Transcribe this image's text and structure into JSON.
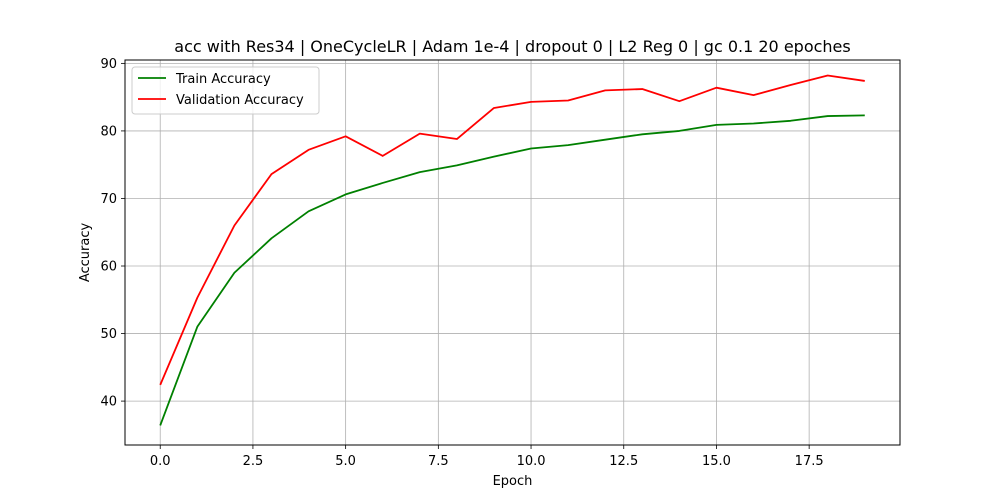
{
  "chart_data": {
    "type": "line",
    "title": "acc with Res34 | OneCycleLR | Adam 1e-4 | dropout 0 | L2 Reg 0 | gc 0.1 20 epoches",
    "xlabel": "Epoch",
    "ylabel": "Accuracy",
    "xlim": [
      -0.95,
      19.95
    ],
    "ylim": [
      33.5,
      90.5
    ],
    "xticks": [
      0,
      2.5,
      5,
      7.5,
      10,
      12.5,
      15,
      17.5
    ],
    "xtick_labels": [
      "0.0",
      "2.5",
      "5.0",
      "7.5",
      "10.0",
      "12.5",
      "15.0",
      "17.5"
    ],
    "yticks": [
      40,
      50,
      60,
      70,
      80,
      90
    ],
    "ytick_labels": [
      "40",
      "50",
      "60",
      "70",
      "80",
      "90"
    ],
    "grid": true,
    "legend": "top-left",
    "x": [
      0,
      1,
      2,
      3,
      4,
      5,
      6,
      7,
      8,
      9,
      10,
      11,
      12,
      13,
      14,
      15,
      16,
      17,
      18,
      19
    ],
    "series": [
      {
        "name": "Train Accuracy",
        "color": "#008000",
        "values": [
          36.4,
          51.0,
          59.0,
          64.1,
          68.1,
          70.6,
          72.3,
          73.9,
          74.9,
          76.2,
          77.4,
          77.9,
          78.7,
          79.5,
          80.0,
          80.9,
          81.1,
          81.5,
          82.2,
          82.3
        ]
      },
      {
        "name": "Validation Accuracy",
        "color": "#ff0000",
        "values": [
          42.4,
          55.3,
          66.0,
          73.6,
          77.2,
          79.2,
          76.3,
          79.6,
          78.8,
          83.4,
          84.3,
          84.5,
          86.0,
          86.2,
          84.4,
          86.4,
          85.3,
          86.8,
          88.2,
          87.4
        ]
      }
    ]
  }
}
